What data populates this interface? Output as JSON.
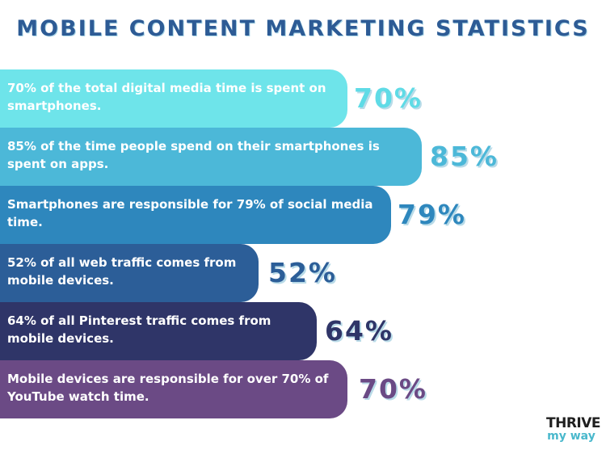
{
  "title": "MOBILE CONTENT MARKETING STATISTICS",
  "stats": [
    {
      "text": "70% of the total digital media time is spent on smartphones.",
      "percent_label": "70%",
      "percent": 70,
      "bar_color": "#6ee4ea",
      "label_color": "#5fdbe6"
    },
    {
      "text": "85% of the time people spend on their smartphones is spent on apps.",
      "percent_label": "85%",
      "percent": 85,
      "bar_color": "#4cb8d8",
      "label_color": "#4cb8d8"
    },
    {
      "text": "Smartphones are responsible for 79% of social media time.",
      "percent_label": "79%",
      "percent": 79,
      "bar_color": "#2e87bd",
      "label_color": "#2e87bd"
    },
    {
      "text": "52% of all web traffic comes from mobile devices.",
      "percent_label": "52%",
      "percent": 52,
      "bar_color": "#2c5e98",
      "label_color": "#2c5e98"
    },
    {
      "text": "64% of all Pinterest traffic comes from mobile devices.",
      "percent_label": "64%",
      "percent": 64,
      "bar_color": "#2f3568",
      "label_color": "#2f3568"
    },
    {
      "text": "Mobile devices are responsible for over 70% of YouTube watch time.",
      "percent_label": "70%",
      "percent": 70,
      "bar_color": "#6b4a85",
      "label_color": "#6b4a85"
    }
  ],
  "logo": {
    "top": "THRIVE",
    "bottom": "my way"
  }
}
